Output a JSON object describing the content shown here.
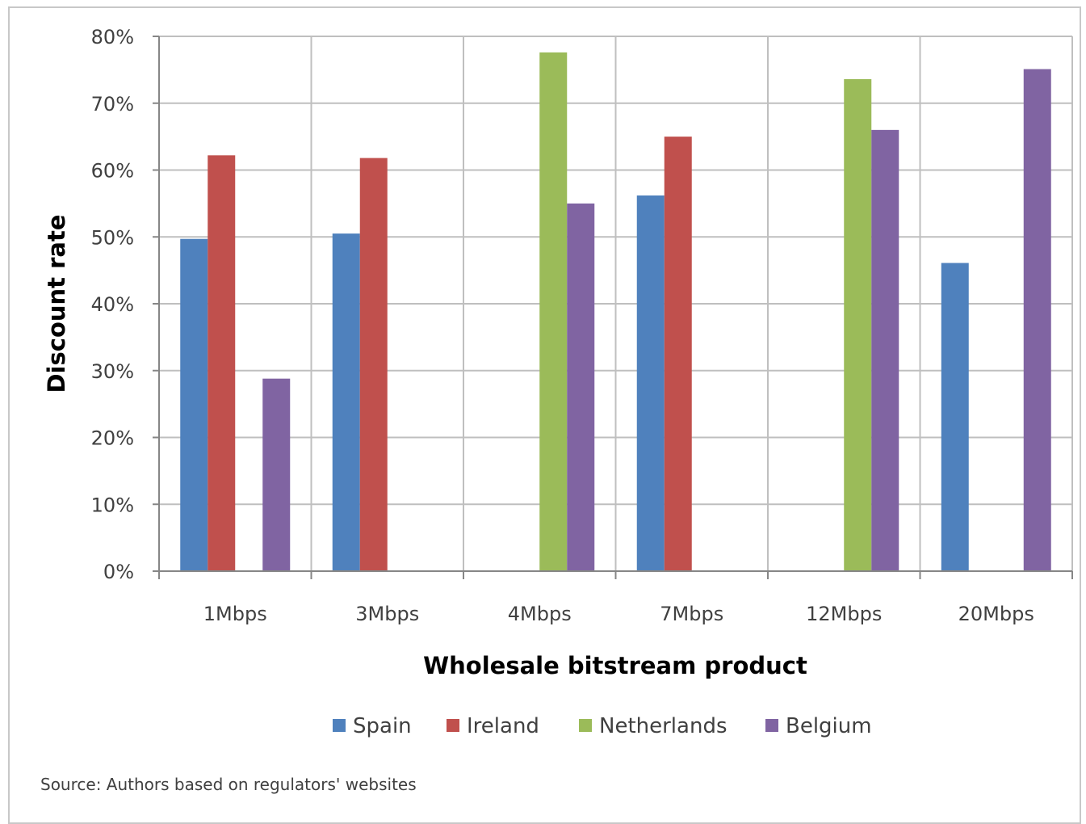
{
  "chart_data": {
    "type": "bar",
    "categories": [
      "1Mbps",
      "3Mbps",
      "4Mbps",
      "7Mbps",
      "12Mbps",
      "20Mbps"
    ],
    "series": [
      {
        "name": "Spain",
        "color": "#4f81bd",
        "values": [
          49.7,
          50.5,
          null,
          56.2,
          null,
          46.1
        ]
      },
      {
        "name": "Ireland",
        "color": "#c0504d",
        "values": [
          62.2,
          61.8,
          null,
          65.0,
          null,
          null
        ]
      },
      {
        "name": "Netherlands",
        "color": "#9bbb59",
        "values": [
          null,
          null,
          77.6,
          null,
          73.6,
          null
        ]
      },
      {
        "name": "Belgium",
        "color": "#8064a2",
        "values": [
          28.8,
          null,
          55.0,
          null,
          66.0,
          75.1
        ]
      }
    ],
    "xlabel": "Wholesale bitstream product",
    "ylabel": "Discount rate",
    "ylim": [
      0,
      80
    ],
    "ytick_step": 10,
    "ytick_format": "percent",
    "grid": true,
    "legend_position": "bottom",
    "source_note": "Source: Authors based on regulators' websites"
  }
}
